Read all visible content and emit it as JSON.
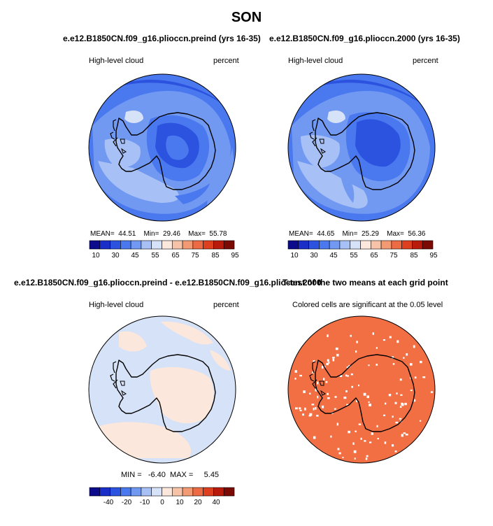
{
  "main_title": "SON",
  "panels": [
    {
      "title": "e.e12.B1850CN.f09_g16.plioccn.preind (yrs 16-35)",
      "left_label": "High-level cloud",
      "right_label": "percent",
      "stats": {
        "mean_label": "MEAN=",
        "mean": "44.51",
        "min_label": "Min=",
        "min": "29.46",
        "max_label": "Max=",
        "max": "55.78"
      },
      "colorbar_ticks": [
        "10",
        "30",
        "45",
        "55",
        "65",
        "75",
        "85",
        "95"
      ]
    },
    {
      "title": "e.e12.B1850CN.f09_g16.plioccn.2000 (yrs 16-35)",
      "left_label": "High-level cloud",
      "right_label": "percent",
      "stats": {
        "mean_label": "MEAN=",
        "mean": "44.65",
        "min_label": "Min=",
        "min": "25.29",
        "max_label": "Max=",
        "max": "56.36"
      },
      "colorbar_ticks": [
        "10",
        "30",
        "45",
        "55",
        "65",
        "75",
        "85",
        "95"
      ]
    },
    {
      "title": "e.e12.B1850CN.f09_g16.plioccn.preind - e.e12.B1850CN.f09_g16.plioccn.2000",
      "left_label": "High-level cloud",
      "right_label": "percent",
      "stats": {
        "min_label": "MIN =",
        "min": "-6.40",
        "max_label": "MAX =",
        "max": "5.45"
      },
      "colorbar_ticks": [
        "-40",
        "-20",
        "-10",
        "0",
        "10",
        "20",
        "40"
      ]
    },
    {
      "title": "T-test of the two means at each grid point",
      "subtitle": "Colored cells are significant at the 0.05 level"
    }
  ],
  "colors": {
    "abs_scale": [
      "#0b0b8c",
      "#1a2fc8",
      "#2c53e0",
      "#4a78ee",
      "#7199f2",
      "#a7c0f5",
      "#d6e2f7",
      "#fbe7dc",
      "#f6c3a8",
      "#f29a74",
      "#ec6a44",
      "#de3f1f",
      "#b81a0c",
      "#7c0a04"
    ],
    "diff_scale": [
      "#0b0b8c",
      "#1a2fc8",
      "#2c53e0",
      "#4a78ee",
      "#7199f2",
      "#a7c0f5",
      "#d6e2f7",
      "#fbe7dc",
      "#f6c3a8",
      "#f29a74",
      "#ec6a44",
      "#de3f1f",
      "#b81a0c",
      "#7c0a04"
    ],
    "ttest_fill": "#f26f43"
  },
  "chart_data": [
    {
      "type": "heatmap",
      "projection": "south polar stereographic",
      "title": "e.e12.B1850CN.f09_g16.plioccn.preind (yrs 16-35)",
      "variable": "High-level cloud",
      "units": "percent",
      "mean": 44.51,
      "min": 29.46,
      "max": 55.78,
      "contour_levels": [
        10,
        20,
        30,
        40,
        45,
        50,
        55,
        60,
        65,
        70,
        75,
        80,
        85,
        90,
        95
      ]
    },
    {
      "type": "heatmap",
      "projection": "south polar stereographic",
      "title": "e.e12.B1850CN.f09_g16.plioccn.2000 (yrs 16-35)",
      "variable": "High-level cloud",
      "units": "percent",
      "mean": 44.65,
      "min": 25.29,
      "max": 56.36,
      "contour_levels": [
        10,
        20,
        30,
        40,
        45,
        50,
        55,
        60,
        65,
        70,
        75,
        80,
        85,
        90,
        95
      ]
    },
    {
      "type": "heatmap",
      "projection": "south polar stereographic",
      "title": "e.e12.B1850CN.f09_g16.plioccn.preind - e.e12.B1850CN.f09_g16.plioccn.2000",
      "variable": "High-level cloud",
      "units": "percent",
      "min": -6.4,
      "max": 5.45,
      "contour_levels": [
        -50,
        -40,
        -30,
        -20,
        -15,
        -10,
        -5,
        0,
        5,
        10,
        15,
        20,
        30,
        40,
        50
      ]
    },
    {
      "type": "heatmap",
      "projection": "south polar stereographic",
      "title": "T-test of the two means at each grid point",
      "significance_level": 0.05
    }
  ]
}
